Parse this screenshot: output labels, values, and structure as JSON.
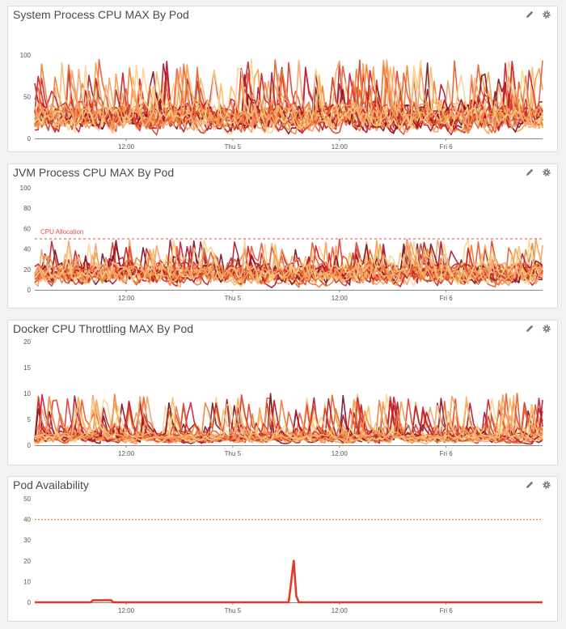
{
  "colors": {
    "palette": [
      "#7a0e1e",
      "#a8142a",
      "#c8192b",
      "#dc3a2a",
      "#e8572b",
      "#f07a33",
      "#f59a45",
      "#f8b865",
      "#fbd38c",
      "#f3a06a"
    ],
    "availability_line": "#e03a2a",
    "reference_line": "#e88c2c",
    "allocation_line": "#e84a4a",
    "icon": "#777777"
  },
  "icons": {
    "edit": "pencil-icon",
    "settings": "gear-icon"
  },
  "panels": [
    {
      "id": "p1",
      "title": "System Process CPU MAX By Pod"
    },
    {
      "id": "p2",
      "title": "JVM Process CPU MAX By Pod"
    },
    {
      "id": "p3",
      "title": "Docker CPU Throttling MAX By Pod"
    },
    {
      "id": "p4",
      "title": "Pod Availability"
    }
  ],
  "chart_data": [
    {
      "type": "line",
      "title": "System Process CPU MAX By Pod",
      "ylim": [
        0,
        100
      ],
      "yticks": [
        0,
        50,
        100
      ],
      "xticks": [
        "12:00",
        "Thu 5",
        "12:00",
        "Fri 6"
      ],
      "series_count": 20,
      "grid": false
    },
    {
      "type": "line",
      "title": "JVM Process CPU MAX By Pod",
      "ylim": [
        0,
        100
      ],
      "yticks": [
        0,
        20,
        40,
        60,
        80,
        100
      ],
      "xticks": [
        "12:00",
        "Thu 5",
        "12:00",
        "Fri 6"
      ],
      "series_count": 20,
      "annotations": [
        {
          "label": "CPU Allocation",
          "y": 50,
          "style": "dashed"
        }
      ],
      "grid": false
    },
    {
      "type": "line",
      "title": "Docker CPU Throttling MAX By Pod",
      "ylim": [
        0,
        20
      ],
      "yticks": [
        0,
        5,
        10,
        15,
        20
      ],
      "xticks": [
        "12:00",
        "Thu 5",
        "12:00",
        "Fri 6"
      ],
      "series_count": 20,
      "grid": false
    },
    {
      "type": "line",
      "title": "Pod Availability",
      "ylim": [
        0,
        50
      ],
      "yticks": [
        0,
        10,
        20,
        30,
        40,
        50
      ],
      "xticks": [
        "12:00",
        "Thu 5",
        "12:00",
        "Fri 6"
      ],
      "reference_line": {
        "y": 40,
        "style": "dotted"
      },
      "series": [
        {
          "points": [
            [
              0,
              0
            ],
            [
              0.11,
              0
            ],
            [
              0.115,
              1
            ],
            [
              0.15,
              1
            ],
            [
              0.155,
              0
            ],
            [
              0.5,
              0
            ],
            [
              0.51,
              20
            ],
            [
              0.515,
              3
            ],
            [
              0.52,
              0
            ],
            [
              1,
              0
            ]
          ]
        }
      ],
      "grid": false
    }
  ]
}
